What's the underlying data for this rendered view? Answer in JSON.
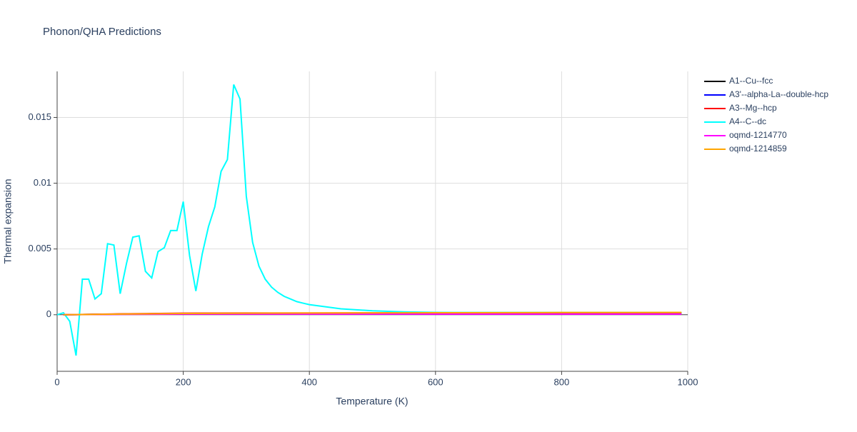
{
  "chart_data": {
    "type": "line",
    "title": "Phonon/QHA Predictions",
    "x_label": "Temperature (K)",
    "y_label": "Thermal expansion",
    "xlim": [
      0,
      1000
    ],
    "xticks": [
      0,
      200,
      400,
      600,
      800,
      1000
    ],
    "ylim": [
      -0.0043,
      0.0185
    ],
    "yticks": [
      0,
      0.005,
      0.01,
      0.015
    ],
    "grid": true,
    "legend": "right",
    "series": [
      {
        "name": "A1--Cu--fcc",
        "color": "#000000",
        "x": [
          10,
          100,
          200,
          300,
          400,
          500,
          600,
          700,
          800,
          900,
          990
        ],
        "values": [
          0,
          5e-05,
          0.0001,
          0.00012,
          0.00012,
          0.00012,
          0.00012,
          0.00013,
          0.00013,
          0.00013,
          0.00013
        ]
      },
      {
        "name": "A3'--alpha-La--double-hcp",
        "color": "#0000ff",
        "x": [
          10,
          100,
          200,
          300,
          400,
          500,
          600,
          700,
          800,
          900,
          990
        ],
        "values": [
          0,
          4e-05,
          8e-05,
          0.0001,
          0.0001,
          0.0001,
          0.00011,
          0.00011,
          0.00011,
          0.00011,
          0.00011
        ]
      },
      {
        "name": "A3--Mg--hcp",
        "color": "#ff0000",
        "x": [
          10,
          100,
          200,
          300,
          400,
          500,
          600,
          700,
          800,
          900,
          990
        ],
        "values": [
          0,
          6e-05,
          0.00012,
          0.00013,
          0.00013,
          0.00014,
          0.00014,
          0.00014,
          0.00015,
          0.00015,
          0.00015
        ]
      },
      {
        "name": "A4--C--dc",
        "color": "#00ffff",
        "x": [
          0,
          10,
          20,
          30,
          40,
          50,
          60,
          70,
          80,
          90,
          100,
          110,
          120,
          130,
          140,
          150,
          160,
          170,
          180,
          190,
          200,
          210,
          220,
          230,
          240,
          250,
          260,
          270,
          280,
          290,
          300,
          310,
          320,
          330,
          340,
          350,
          360,
          370,
          380,
          390,
          400,
          450,
          500,
          550,
          600,
          650,
          700,
          750,
          800,
          850,
          900,
          950,
          990
        ],
        "values": [
          0,
          0.00015,
          -0.0005,
          -0.0031,
          0.0027,
          0.0027,
          0.0012,
          0.0016,
          0.0054,
          0.0053,
          0.0016,
          0.0039,
          0.0059,
          0.006,
          0.0033,
          0.0028,
          0.0048,
          0.0051,
          0.0064,
          0.0064,
          0.0086,
          0.0045,
          0.0018,
          0.0046,
          0.0067,
          0.0082,
          0.0109,
          0.0118,
          0.0175,
          0.0164,
          0.009,
          0.0055,
          0.0037,
          0.0027,
          0.0021,
          0.0017,
          0.0014,
          0.0012,
          0.001,
          0.00088,
          0.00077,
          0.00045,
          0.0003,
          0.00022,
          0.00018,
          0.00017,
          0.00017,
          0.00017,
          0.00017,
          0.00017,
          0.00017,
          0.00017,
          0.00017
        ]
      },
      {
        "name": "oqmd-1214770",
        "color": "#ff00ff",
        "x": [
          10,
          100,
          200,
          300,
          400,
          500,
          600,
          700,
          800,
          900,
          990
        ],
        "values": [
          0,
          3e-05,
          5e-05,
          5e-05,
          5e-05,
          5e-05,
          5e-05,
          5e-05,
          5e-05,
          5e-05,
          5e-05
        ]
      },
      {
        "name": "oqmd-1214859",
        "color": "#ffa500",
        "x": [
          10,
          100,
          200,
          300,
          400,
          500,
          600,
          700,
          800,
          900,
          990
        ],
        "values": [
          0,
          5e-05,
          0.0001,
          0.00012,
          0.00013,
          0.00014,
          0.00015,
          0.00016,
          0.00017,
          0.00017,
          0.00018
        ]
      }
    ]
  }
}
